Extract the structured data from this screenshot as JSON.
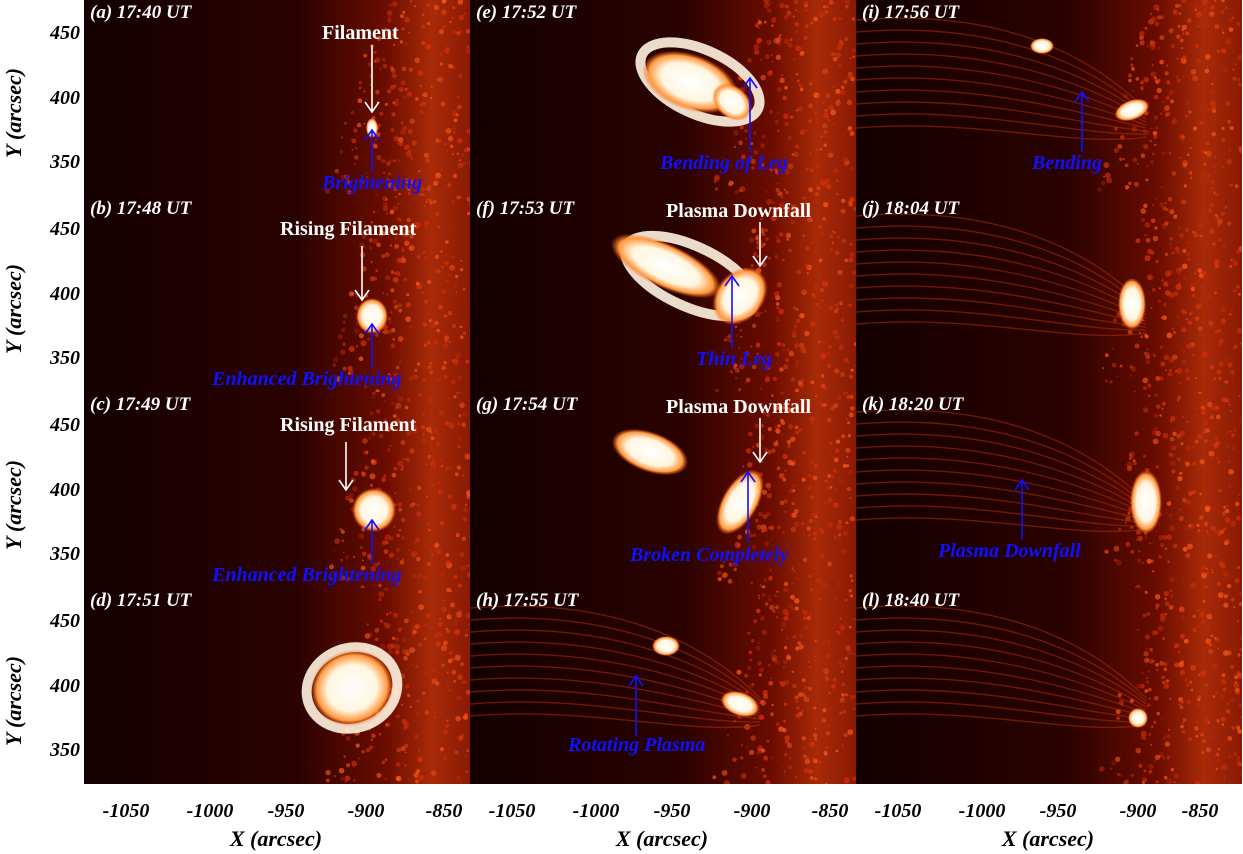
{
  "figure": {
    "y_ticks": [
      "450",
      "400",
      "350"
    ],
    "x_ticks": [
      "-1050",
      "-1000",
      "-950",
      "-900",
      "-850"
    ],
    "y_axis_label": "Y (arcsec)",
    "x_axis_label": "X (arcsec)",
    "colors": {
      "background_dark": "#1a0000",
      "bright_plasma": "#ffffff",
      "annotation_blue": "#1010ff",
      "annotation_white": "#ffffff"
    },
    "panels": [
      {
        "title": "(a) 17:40 UT",
        "white_label": "Filament",
        "blue_label": "Brightening"
      },
      {
        "title": "(b) 17:48 UT",
        "white_label": "Rising Filament",
        "blue_label": "Enhanced Brightening"
      },
      {
        "title": "(c) 17:49 UT",
        "white_label": "Rising Filament",
        "blue_label": "Enhanced Brightening"
      },
      {
        "title": "(d) 17:51 UT"
      },
      {
        "title": "(e) 17:52 UT",
        "blue_label": "Bending of Leg"
      },
      {
        "title": "(f) 17:53 UT",
        "white_label": "Plasma Downfall",
        "blue_label": "Thin Leg"
      },
      {
        "title": "(g) 17:54 UT",
        "white_label": "Plasma Downfall",
        "blue_label": "Broken Completely"
      },
      {
        "title": "(h) 17:55 UT",
        "blue_label": "Rotating Plasma"
      },
      {
        "title": "(i) 17:56 UT",
        "blue_label": "Bending"
      },
      {
        "title": "(j) 18:04 UT"
      },
      {
        "title": "(k) 18:20 UT",
        "blue_label": "Plasma Downfall"
      },
      {
        "title": "(l) 18:40 UT"
      }
    ]
  }
}
